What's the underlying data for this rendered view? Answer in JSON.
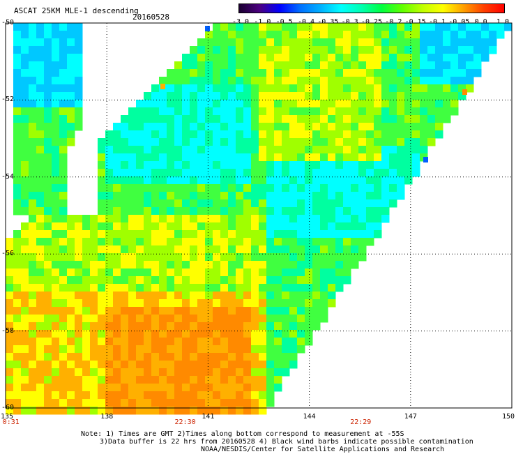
{
  "header": {
    "product": "ASCAT 25KM MLE-1 descending",
    "date": "20160528"
  },
  "colorbar": {
    "tick_labels": [
      "-3.0",
      "-1.0",
      "-0.5",
      "-0.4",
      "-0.35",
      "-0.3",
      "-0.25",
      "-0.2",
      "-0.15",
      "-0.1",
      "-0.05",
      "0.0",
      "1.0"
    ],
    "colors": [
      "#1a0030",
      "#4b0080",
      "#0000ff",
      "#0070ff",
      "#00b0ff",
      "#00ffff",
      "#00ffb0",
      "#00ff40",
      "#60ff00",
      "#c0ff00",
      "#ffff00",
      "#ffa000",
      "#ff4000",
      "#ff0000"
    ]
  },
  "map": {
    "lat_labels": [
      "-50",
      "-52",
      "-54",
      "-56",
      "-58",
      "-60"
    ],
    "lon_labels": [
      "135",
      "138",
      "141",
      "144",
      "147",
      "150"
    ],
    "lat_range": [
      -60,
      -50
    ],
    "lon_range": [
      135,
      150
    ],
    "time_labels": [
      {
        "text": "0:31",
        "lon": 135.2
      },
      {
        "text": "22:30",
        "lon": 140.3
      },
      {
        "text": "22:29",
        "lon": 145.5
      }
    ],
    "palette": {
      "cyan": "#00ffff",
      "aqua_green": "#00ffa0",
      "green": "#40ff40",
      "lime": "#a0ff00",
      "yellow": "#ffff00",
      "orange": "#ffb000",
      "dark_orange": "#ff8a00",
      "sky": "#00c8ff",
      "blue": "#0060ff"
    }
  },
  "footer": {
    "note_line1": "Note: 1) Times are GMT 2)Times along bottom correspond to measurement at -55S",
    "note_line2": "3)Data buffer is 22 hrs from 20160528 4) Black wind barbs indicate possible contamination",
    "credit": "NOAA/NESDIS/Center for Satellite Applications and Research"
  }
}
